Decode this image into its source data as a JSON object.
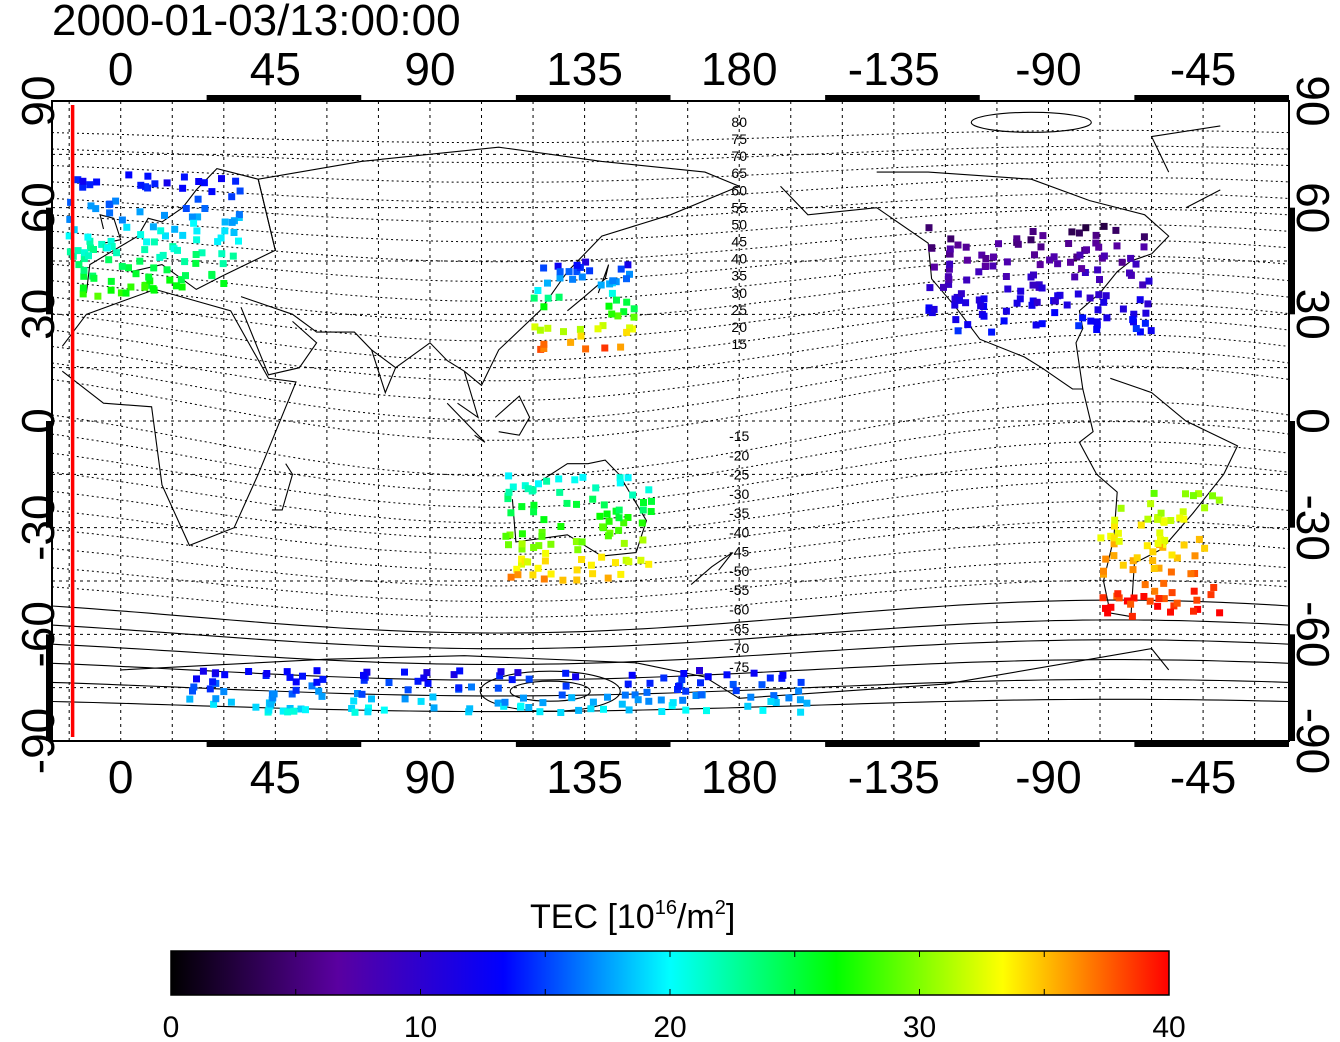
{
  "title": "2000-01-03/13:00:00",
  "top_ticks": [
    "0",
    "45",
    "90",
    "135",
    "180",
    "-135",
    "-90",
    "-45"
  ],
  "bottom_ticks": [
    "0",
    "45",
    "90",
    "135",
    "180",
    "-135",
    "-90",
    "-45"
  ],
  "left_ticks": [
    "90",
    "60",
    "30",
    "0",
    "-30",
    "-60",
    "-90"
  ],
  "right_ticks": [
    "90",
    "60",
    "30",
    "0",
    "-30",
    "-60",
    "-90"
  ],
  "contour_labels_north": [
    "80",
    "75",
    "70",
    "65",
    "60",
    "55",
    "50",
    "45",
    "40",
    "35",
    "30",
    "25",
    "20",
    "15"
  ],
  "contour_labels_south": [
    "-15",
    "-20",
    "-25",
    "-30",
    "-35",
    "-40",
    "-45",
    "-50",
    "-55",
    "-60",
    "-65",
    "-70",
    "-75"
  ],
  "colorbar": {
    "label_main": "TEC  [10",
    "label_sup1": "16",
    "label_mid": "/m",
    "label_sup2": "2",
    "label_end": "]",
    "ticks": [
      "0",
      "10",
      "20",
      "30",
      "40"
    ],
    "min": 0,
    "max": 40,
    "stops": [
      "#000000",
      "#5a00a0",
      "#0000ff",
      "#00ffff",
      "#00ff00",
      "#ffff00",
      "#ff0000"
    ]
  },
  "colors": {
    "terminator": "#ff0000",
    "frame": "#000000"
  },
  "map": {
    "lon_range": [
      -20,
      340
    ],
    "lat_range": [
      -90,
      90
    ],
    "terminator_lon": -14
  },
  "tec_regions": [
    {
      "name": "europe",
      "lon": [
        -15,
        35
      ],
      "lat": [
        35,
        70
      ],
      "tec": [
        12,
        28
      ]
    },
    {
      "name": "north-america",
      "lon": [
        235,
        300
      ],
      "lat": [
        25,
        55
      ],
      "tec": [
        4,
        14
      ]
    },
    {
      "name": "east-asia",
      "lon": [
        120,
        150
      ],
      "lat": [
        20,
        45
      ],
      "tec": [
        12,
        38
      ]
    },
    {
      "name": "australia",
      "lon": [
        112,
        155
      ],
      "lat": [
        -45,
        -15
      ],
      "tec": [
        20,
        36
      ]
    },
    {
      "name": "south-america",
      "lon": [
        285,
        320
      ],
      "lat": [
        -55,
        -20
      ],
      "tec": [
        30,
        40
      ]
    },
    {
      "name": "antarctic",
      "lon": [
        20,
        200
      ],
      "lat": [
        -82,
        -70
      ],
      "tec": [
        12,
        20
      ]
    }
  ]
}
